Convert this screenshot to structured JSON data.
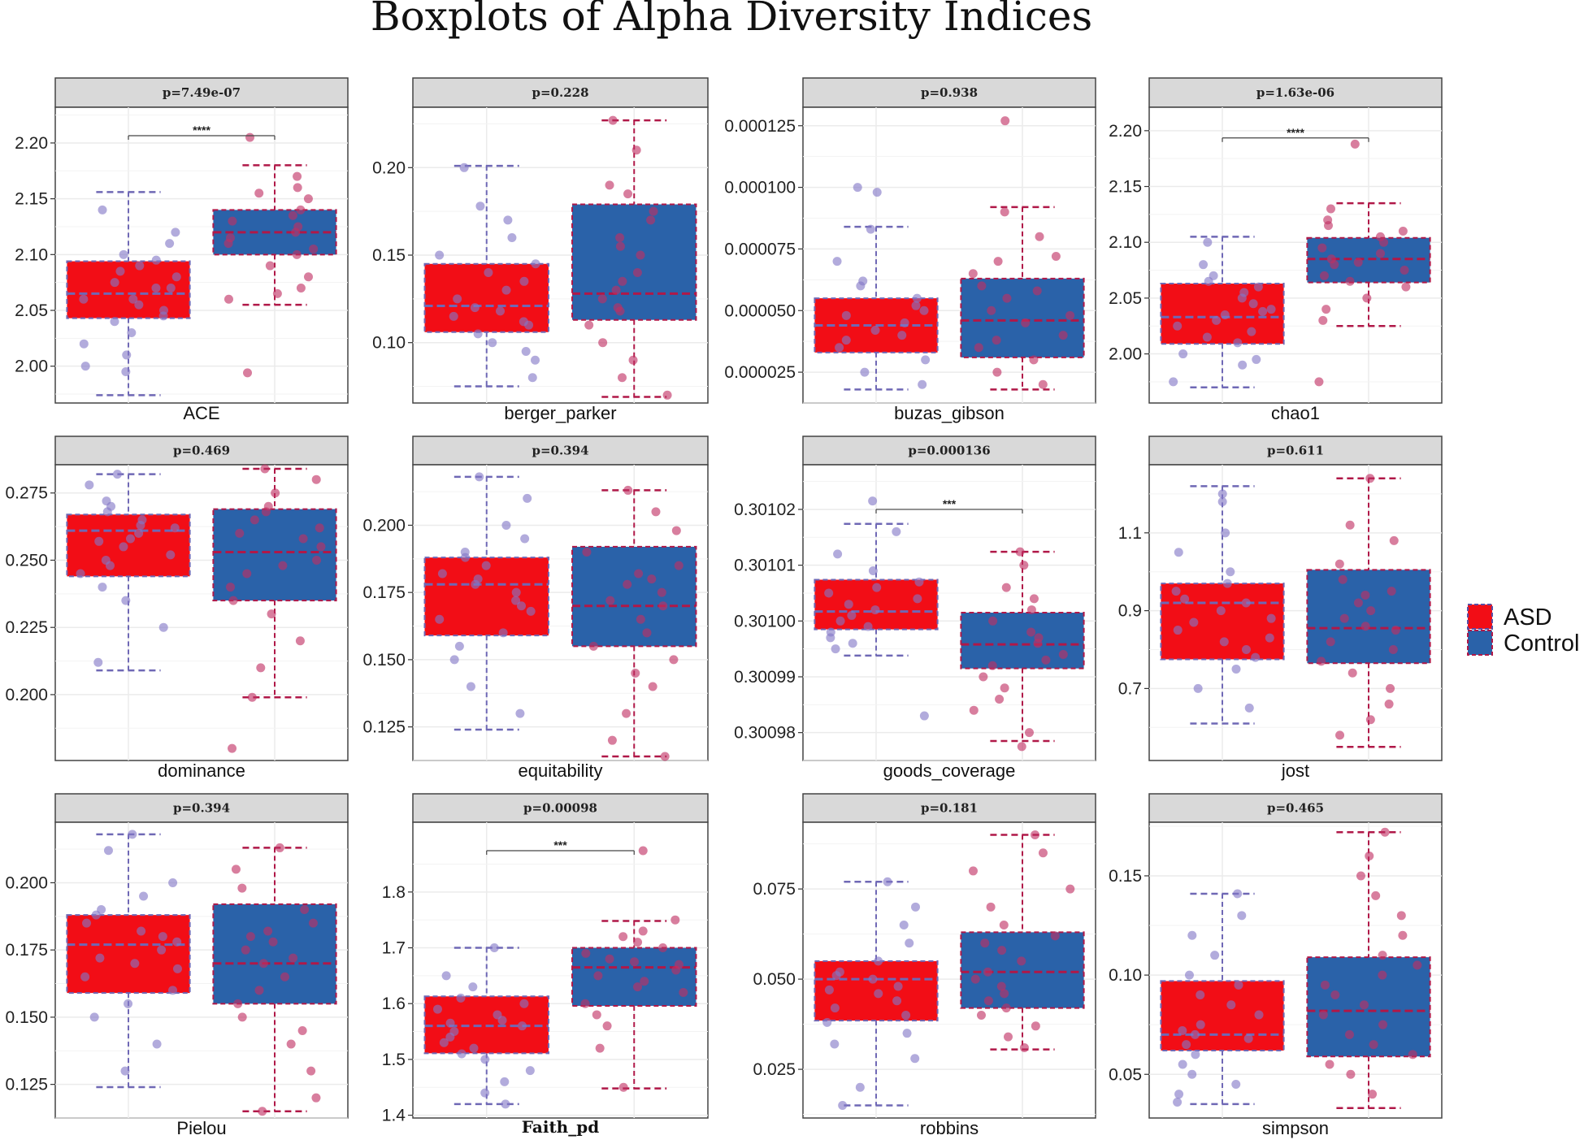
{
  "figure_title": "Boxplots of Alpha Diversity Indices",
  "legend": [
    {
      "label": "ASD",
      "color": "#f20d16"
    },
    {
      "label": "Control",
      "color": "#2a62a9"
    }
  ],
  "colors": {
    "asd_fill": "#f20d16",
    "control_fill": "#2a62a9",
    "asd_whisker": "#6f68b5",
    "control_whisker": "#b01848",
    "asd_points": "#8278c6",
    "control_points": "#c02e62",
    "strip_bg": "#d9d9d9",
    "grid": "#ebebeb"
  },
  "chart_data": [
    {
      "type": "box",
      "metric": "ACE",
      "title": "p=7.49e-07",
      "xlabel": "ACE",
      "ylim": [
        1.967,
        2.232
      ],
      "yticks": [
        2.0,
        2.05,
        2.1,
        2.15,
        2.2
      ],
      "tick_labels": [
        "2.00",
        "2.05",
        "2.10",
        "2.15",
        "2.20"
      ],
      "significance": "****",
      "sig_y": 2.2065,
      "groups": [
        {
          "name": "ASD",
          "min": 1.974,
          "q1": 2.043,
          "median": 2.065,
          "q3": 2.094,
          "max": 2.156
        },
        {
          "name": "Control",
          "min": 2.055,
          "q1": 2.1,
          "median": 2.12,
          "q3": 2.14,
          "max": 2.18
        }
      ],
      "points": [
        [
          2.14,
          2.11,
          2.09,
          2.07,
          2.06,
          2.05,
          2.04,
          2.02,
          2.0,
          2.08,
          2.12,
          2.03,
          2.1,
          2.06,
          2.055,
          2.07,
          2.095,
          2.085,
          1.995,
          2.045,
          2.075,
          2.01
        ],
        [
          2.205,
          2.17,
          2.15,
          2.13,
          2.12,
          2.11,
          2.1,
          2.09,
          2.08,
          2.07,
          2.06,
          2.14,
          2.125,
          2.115,
          2.135,
          1.994,
          2.065,
          2.105,
          2.16,
          2.155
        ]
      ]
    },
    {
      "type": "box",
      "metric": "berger_parker",
      "title": "p=0.228",
      "xlabel": "berger_parker",
      "ylim": [
        0.0655,
        0.2345
      ],
      "yticks": [
        0.1,
        0.15,
        0.2
      ],
      "tick_labels": [
        "0.10",
        "0.15",
        "0.20"
      ],
      "significance": "",
      "sig_y": null,
      "groups": [
        {
          "name": "ASD",
          "min": 0.075,
          "q1": 0.106,
          "median": 0.121,
          "q3": 0.145,
          "max": 0.201
        },
        {
          "name": "Control",
          "min": 0.069,
          "q1": 0.113,
          "median": 0.128,
          "q3": 0.179,
          "max": 0.227
        }
      ],
      "points": [
        [
          0.2,
          0.17,
          0.15,
          0.14,
          0.13,
          0.12,
          0.115,
          0.11,
          0.105,
          0.1,
          0.09,
          0.08,
          0.125,
          0.135,
          0.16,
          0.145,
          0.118,
          0.095,
          0.178,
          0.112
        ],
        [
          0.227,
          0.21,
          0.19,
          0.17,
          0.16,
          0.15,
          0.14,
          0.13,
          0.125,
          0.12,
          0.11,
          0.1,
          0.09,
          0.08,
          0.07,
          0.185,
          0.135,
          0.155,
          0.175,
          0.118
        ]
      ]
    },
    {
      "type": "box",
      "metric": "buzas_gibson",
      "title": "p=0.938",
      "xlabel": "buzas_gibson",
      "ylim": [
        1.25e-05,
        0.0001325
      ],
      "yticks": [
        2.5e-05,
        5e-05,
        7.5e-05,
        0.0001,
        0.000125
      ],
      "tick_labels": [
        "0.000025",
        "0.000050",
        "0.000075",
        "0.000100",
        "0.000125"
      ],
      "significance": "",
      "sig_y": null,
      "groups": [
        {
          "name": "ASD",
          "min": 1.8e-05,
          "q1": 3.3e-05,
          "median": 4.4e-05,
          "q3": 5.5e-05,
          "max": 8.4e-05
        },
        {
          "name": "Control",
          "min": 1.8e-05,
          "q1": 3.1e-05,
          "median": 4.6e-05,
          "q3": 6.3e-05,
          "max": 9.2e-05
        }
      ],
      "points": [
        [
          0.0001,
          9.8e-05,
          8.3e-05,
          7e-05,
          6e-05,
          5.5e-05,
          5e-05,
          4.5e-05,
          4e-05,
          3.5e-05,
          3e-05,
          2.5e-05,
          2e-05,
          4.8e-05,
          5.2e-05,
          3.8e-05,
          4.2e-05,
          6.2e-05
        ],
        [
          0.000127,
          9e-05,
          8e-05,
          7e-05,
          6.5e-05,
          6e-05,
          5.5e-05,
          5e-05,
          4.5e-05,
          4e-05,
          3.5e-05,
          3e-05,
          2.5e-05,
          2e-05,
          4.8e-05,
          5.8e-05,
          3.8e-05,
          7.2e-05
        ]
      ]
    },
    {
      "type": "box",
      "metric": "chao1",
      "title": "p=1.63e-06",
      "xlabel": "chao1",
      "ylim": [
        1.956,
        2.221
      ],
      "yticks": [
        2.0,
        2.05,
        2.1,
        2.15,
        2.2
      ],
      "tick_labels": [
        "2.00",
        "2.05",
        "2.10",
        "2.15",
        "2.20"
      ],
      "significance": "****",
      "sig_y": 2.1935,
      "groups": [
        {
          "name": "ASD",
          "min": 1.97,
          "q1": 2.009,
          "median": 2.033,
          "q3": 2.063,
          "max": 2.105
        },
        {
          "name": "Control",
          "min": 2.025,
          "q1": 2.064,
          "median": 2.085,
          "q3": 2.104,
          "max": 2.135
        }
      ],
      "points": [
        [
          2.1,
          2.08,
          2.06,
          2.05,
          2.04,
          2.03,
          2.02,
          2.01,
          2.0,
          1.99,
          1.975,
          2.045,
          2.055,
          2.035,
          2.025,
          2.07,
          2.015,
          1.995,
          2.065,
          2.038
        ],
        [
          2.188,
          2.13,
          2.12,
          2.11,
          2.1,
          2.09,
          2.08,
          2.07,
          2.06,
          2.05,
          2.04,
          2.03,
          1.975,
          2.095,
          2.085,
          2.075,
          2.115,
          2.065,
          2.105,
          2.082
        ]
      ]
    },
    {
      "type": "box",
      "metric": "dominance",
      "title": "p=0.469",
      "xlabel": "dominance",
      "ylim": [
        0.1755,
        0.2855
      ],
      "yticks": [
        0.2,
        0.225,
        0.25,
        0.275
      ],
      "tick_labels": [
        "0.200",
        "0.225",
        "0.250",
        "0.275"
      ],
      "significance": "",
      "sig_y": null,
      "groups": [
        {
          "name": "ASD",
          "min": 0.209,
          "q1": 0.244,
          "median": 0.261,
          "q3": 0.267,
          "max": 0.282
        },
        {
          "name": "Control",
          "min": 0.199,
          "q1": 0.235,
          "median": 0.253,
          "q3": 0.269,
          "max": 0.284
        }
      ],
      "points": [
        [
          0.282,
          0.278,
          0.272,
          0.268,
          0.265,
          0.262,
          0.26,
          0.258,
          0.255,
          0.25,
          0.245,
          0.24,
          0.235,
          0.225,
          0.212,
          0.263,
          0.257,
          0.248,
          0.27,
          0.252
        ],
        [
          0.284,
          0.28,
          0.275,
          0.27,
          0.265,
          0.26,
          0.255,
          0.25,
          0.245,
          0.24,
          0.235,
          0.23,
          0.22,
          0.21,
          0.199,
          0.18,
          0.262,
          0.258,
          0.248,
          0.268
        ]
      ]
    },
    {
      "type": "box",
      "metric": "equitability",
      "title": "p=0.394",
      "xlabel": "equitability",
      "ylim": [
        0.1125,
        0.2225
      ],
      "yticks": [
        0.125,
        0.15,
        0.175,
        0.2
      ],
      "tick_labels": [
        "0.125",
        "0.150",
        "0.175",
        "0.200"
      ],
      "significance": "",
      "sig_y": null,
      "groups": [
        {
          "name": "ASD",
          "min": 0.124,
          "q1": 0.159,
          "median": 0.178,
          "q3": 0.188,
          "max": 0.218
        },
        {
          "name": "Control",
          "min": 0.114,
          "q1": 0.155,
          "median": 0.17,
          "q3": 0.192,
          "max": 0.213
        }
      ],
      "points": [
        [
          0.218,
          0.21,
          0.2,
          0.195,
          0.19,
          0.185,
          0.18,
          0.178,
          0.175,
          0.17,
          0.165,
          0.16,
          0.155,
          0.15,
          0.14,
          0.13,
          0.182,
          0.172,
          0.188,
          0.168
        ],
        [
          0.213,
          0.205,
          0.198,
          0.19,
          0.185,
          0.18,
          0.175,
          0.17,
          0.165,
          0.16,
          0.155,
          0.15,
          0.145,
          0.14,
          0.13,
          0.12,
          0.114,
          0.172,
          0.182,
          0.178
        ]
      ]
    },
    {
      "type": "box",
      "metric": "goods_coverage",
      "title": "p=0.000136",
      "xlabel": "goods_coverage",
      "ylim": [
        0.300975,
        0.301028
      ],
      "yticks": [
        0.30098,
        0.30099,
        0.301,
        0.30101,
        0.30102
      ],
      "tick_labels": [
        "0.30098",
        "0.30099",
        "0.30100",
        "0.30101",
        "0.30102"
      ],
      "significance": "***",
      "sig_y": 0.30102,
      "groups": [
        {
          "name": "ASD",
          "min": 0.3009938,
          "q1": 0.3009985,
          "median": 0.3010017,
          "q3": 0.3010074,
          "max": 0.3010174
        },
        {
          "name": "Control",
          "min": 0.3009785,
          "q1": 0.3009915,
          "median": 0.3009958,
          "q3": 0.3010015,
          "max": 0.3010124
        }
      ],
      "points": [
        [
          0.3010215,
          0.301016,
          0.301012,
          0.301009,
          0.301007,
          0.301005,
          0.301003,
          0.301001,
          0.301,
          0.300999,
          0.300997,
          0.300995,
          0.300983,
          0.301006,
          0.301002,
          0.300998,
          0.301004,
          0.300996
        ],
        [
          0.3010124,
          0.30101,
          0.301006,
          0.301004,
          0.301002,
          0.301,
          0.300998,
          0.300996,
          0.300994,
          0.300992,
          0.30099,
          0.300988,
          0.300986,
          0.300984,
          0.30098,
          0.3009775,
          0.300997,
          0.300993
        ]
      ]
    },
    {
      "type": "box",
      "metric": "jost",
      "title": "p=0.611",
      "xlabel": "jost",
      "ylim": [
        0.515,
        1.275
      ],
      "yticks": [
        0.7,
        0.9,
        1.1
      ],
      "tick_labels": [
        "0.7",
        "0.9",
        "1.1"
      ],
      "significance": "",
      "sig_y": null,
      "groups": [
        {
          "name": "ASD",
          "min": 0.61,
          "q1": 0.775,
          "median": 0.92,
          "q3": 0.97,
          "max": 1.22
        },
        {
          "name": "Control",
          "min": 0.55,
          "q1": 0.765,
          "median": 0.855,
          "q3": 1.005,
          "max": 1.24
        }
      ],
      "points": [
        [
          1.2,
          1.18,
          1.1,
          1.05,
          1.0,
          0.97,
          0.95,
          0.93,
          0.9,
          0.88,
          0.85,
          0.82,
          0.8,
          0.78,
          0.75,
          0.7,
          0.65,
          0.92,
          0.87,
          0.83
        ],
        [
          1.24,
          1.12,
          1.08,
          1.02,
          0.98,
          0.95,
          0.92,
          0.9,
          0.88,
          0.85,
          0.82,
          0.8,
          0.77,
          0.74,
          0.7,
          0.66,
          0.62,
          0.58,
          0.86,
          0.94
        ]
      ]
    },
    {
      "type": "box",
      "metric": "Pielou",
      "title": "p=0.394",
      "xlabel": "Pielou",
      "ylim": [
        0.1125,
        0.2225
      ],
      "yticks": [
        0.125,
        0.15,
        0.175,
        0.2
      ],
      "tick_labels": [
        "0.125",
        "0.150",
        "0.175",
        "0.200"
      ],
      "significance": "",
      "sig_y": null,
      "groups": [
        {
          "name": "ASD",
          "min": 0.124,
          "q1": 0.159,
          "median": 0.177,
          "q3": 0.188,
          "max": 0.218
        },
        {
          "name": "Control",
          "min": 0.115,
          "q1": 0.155,
          "median": 0.17,
          "q3": 0.192,
          "max": 0.213
        }
      ],
      "points": [
        [
          0.218,
          0.212,
          0.2,
          0.195,
          0.19,
          0.185,
          0.18,
          0.178,
          0.175,
          0.17,
          0.165,
          0.16,
          0.155,
          0.15,
          0.14,
          0.13,
          0.182,
          0.172,
          0.188,
          0.168
        ],
        [
          0.213,
          0.205,
          0.198,
          0.19,
          0.185,
          0.18,
          0.175,
          0.17,
          0.165,
          0.16,
          0.155,
          0.15,
          0.145,
          0.14,
          0.13,
          0.12,
          0.115,
          0.172,
          0.182,
          0.178
        ]
      ]
    },
    {
      "type": "box",
      "metric": "Faith_pd",
      "title": "p=0.00098",
      "xlabel": "Faith_pd",
      "ylim": [
        1.395,
        1.925
      ],
      "yticks": [
        1.4,
        1.5,
        1.6,
        1.7,
        1.8
      ],
      "tick_labels": [
        "1.4",
        "1.5",
        "1.6",
        "1.7",
        "1.8"
      ],
      "significance": "***",
      "sig_y": 1.874,
      "groups": [
        {
          "name": "ASD",
          "min": 1.42,
          "q1": 1.511,
          "median": 1.56,
          "q3": 1.613,
          "max": 1.7
        },
        {
          "name": "Control",
          "min": 1.448,
          "q1": 1.596,
          "median": 1.665,
          "q3": 1.7,
          "max": 1.748
        }
      ],
      "points": [
        [
          1.7,
          1.65,
          1.63,
          1.61,
          1.6,
          1.58,
          1.57,
          1.56,
          1.55,
          1.54,
          1.53,
          1.52,
          1.51,
          1.5,
          1.48,
          1.46,
          1.44,
          1.42,
          1.565,
          1.59
        ],
        [
          1.874,
          1.75,
          1.73,
          1.72,
          1.71,
          1.7,
          1.69,
          1.68,
          1.67,
          1.66,
          1.65,
          1.64,
          1.63,
          1.62,
          1.6,
          1.58,
          1.56,
          1.52,
          1.45,
          1.675
        ]
      ]
    },
    {
      "type": "box",
      "metric": "robbins",
      "title": "p=0.181",
      "xlabel": "robbins",
      "ylim": [
        0.0115,
        0.0935
      ],
      "yticks": [
        0.025,
        0.05,
        0.075
      ],
      "tick_labels": [
        "0.025",
        "0.050",
        "0.075"
      ],
      "significance": "",
      "sig_y": null,
      "groups": [
        {
          "name": "ASD",
          "min": 0.015,
          "q1": 0.0385,
          "median": 0.05,
          "q3": 0.055,
          "max": 0.077
        },
        {
          "name": "Control",
          "min": 0.0305,
          "q1": 0.042,
          "median": 0.052,
          "q3": 0.063,
          "max": 0.09
        }
      ],
      "points": [
        [
          0.077,
          0.07,
          0.065,
          0.06,
          0.055,
          0.052,
          0.05,
          0.048,
          0.046,
          0.044,
          0.042,
          0.04,
          0.038,
          0.035,
          0.032,
          0.028,
          0.02,
          0.015,
          0.051,
          0.047
        ],
        [
          0.09,
          0.085,
          0.08,
          0.075,
          0.07,
          0.065,
          0.062,
          0.06,
          0.058,
          0.055,
          0.052,
          0.05,
          0.048,
          0.046,
          0.044,
          0.042,
          0.04,
          0.037,
          0.034,
          0.031
        ]
      ]
    },
    {
      "type": "box",
      "metric": "simpson",
      "title": "p=0.465",
      "xlabel": "simpson",
      "ylim": [
        0.028,
        0.177
      ],
      "yticks": [
        0.05,
        0.1,
        0.15
      ],
      "tick_labels": [
        "0.05",
        "0.10",
        "0.15"
      ],
      "significance": "",
      "sig_y": null,
      "groups": [
        {
          "name": "ASD",
          "min": 0.035,
          "q1": 0.062,
          "median": 0.07,
          "q3": 0.097,
          "max": 0.141
        },
        {
          "name": "Control",
          "min": 0.033,
          "q1": 0.059,
          "median": 0.082,
          "q3": 0.109,
          "max": 0.172
        }
      ],
      "points": [
        [
          0.141,
          0.13,
          0.12,
          0.11,
          0.1,
          0.095,
          0.09,
          0.085,
          0.08,
          0.075,
          0.072,
          0.07,
          0.068,
          0.065,
          0.06,
          0.055,
          0.05,
          0.045,
          0.04,
          0.036
        ],
        [
          0.172,
          0.16,
          0.15,
          0.14,
          0.13,
          0.12,
          0.11,
          0.105,
          0.1,
          0.095,
          0.09,
          0.085,
          0.08,
          0.075,
          0.07,
          0.065,
          0.06,
          0.055,
          0.05,
          0.04
        ]
      ]
    }
  ]
}
